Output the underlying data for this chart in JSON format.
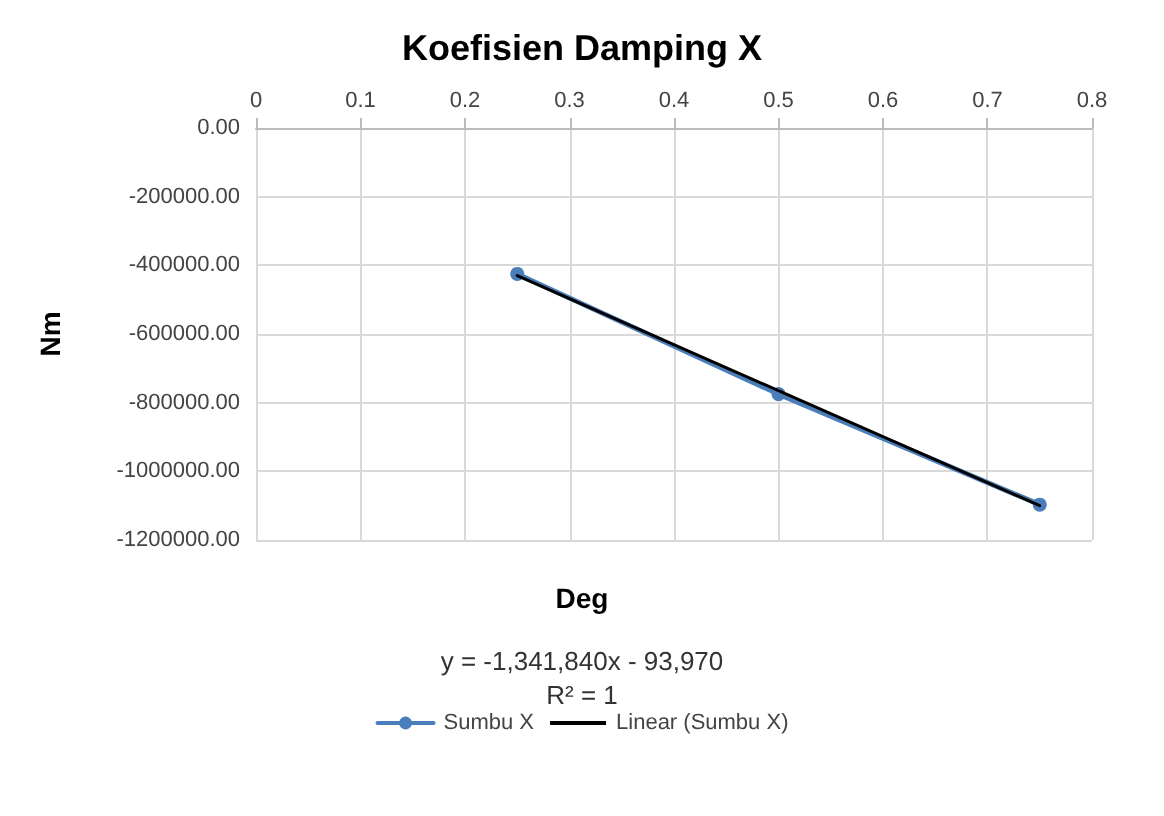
{
  "chart_data": {
    "type": "line",
    "title": "Koefisien Damping X",
    "xlabel": "Deg",
    "ylabel": "Nm",
    "annotations": [
      "y = -1,341,840x - 93,970",
      "R² = 1"
    ],
    "x": [
      0.25,
      0.5,
      0.75
    ],
    "series": [
      {
        "name": "Sumbu X",
        "color": "#4a7ebb",
        "values": [
          -425000,
          -775000,
          -1097000
        ],
        "marker": "circle"
      },
      {
        "name": "Linear (Sumbu X)",
        "type": "line",
        "color": "#000000",
        "x": [
          0.25,
          0.75
        ],
        "values": [
          -430000,
          -1100000
        ],
        "marker": "none"
      }
    ],
    "xlim": [
      0,
      0.8
    ],
    "xticks": [
      0,
      0.1,
      0.2,
      0.3,
      0.4,
      0.5,
      0.6,
      0.7,
      0.8
    ],
    "ylim": [
      -1200000,
      0
    ],
    "yticks": [
      {
        "value": 0,
        "label": "0.00"
      },
      {
        "value": -200000,
        "label": "-200000.00"
      },
      {
        "value": -400000,
        "label": "-400000.00"
      },
      {
        "value": -600000,
        "label": "-600000.00"
      },
      {
        "value": -800000,
        "label": "-800000.00"
      },
      {
        "value": -1000000,
        "label": "-1000000.00"
      },
      {
        "value": -1200000,
        "label": "-1200000.00"
      }
    ],
    "grid": true,
    "legend": "bottom",
    "line_style": "solid"
  }
}
